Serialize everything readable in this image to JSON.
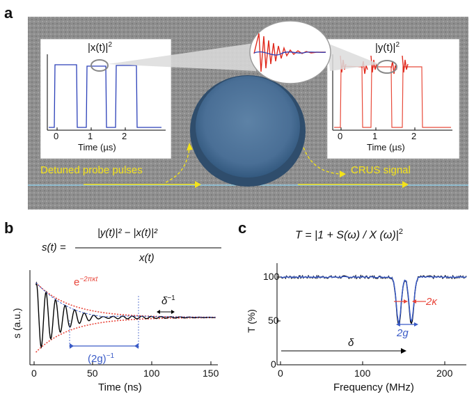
{
  "panel_letters": {
    "a": "a",
    "b": "b",
    "c": "c"
  },
  "panel_a": {
    "left_inset": {
      "ylabel": "|x(t)|",
      "ylabel_sup": "2",
      "xlabel": "Time (µs)",
      "ticks": [
        "0",
        "1",
        "2"
      ]
    },
    "right_inset": {
      "ylabel": "|y(t)|",
      "ylabel_sup": "2",
      "xlabel": "Time (µs)",
      "ticks": [
        "0",
        "1",
        "2"
      ]
    },
    "labels": {
      "probe": "Detuned probe pulses",
      "signal": "CRUS signal"
    },
    "colors": {
      "probe_trace": "#2a3fb8",
      "signal_trace": "#e02a1e",
      "annotation": "#f3e21a"
    }
  },
  "panel_b": {
    "formula_lhs": "s(t)  =",
    "formula_num": "|y(t)|² − |x(t)|²",
    "formula_den": "x(t)",
    "envelope_label": "e",
    "envelope_exp": "−2πκt",
    "delta_label": "δ",
    "delta_exp": "−1",
    "g_label": "(2g)",
    "g_exp": "−1",
    "ylabel": "s (a.u.)",
    "xlabel": "Time (ns)",
    "xticks": [
      "0",
      "50",
      "100",
      "150"
    ]
  },
  "panel_c": {
    "formula": "T = |1 + S(ω) / X (ω)|",
    "formula_exp": "2",
    "kappa_label": "2κ",
    "g_label": "2g",
    "delta_label": "δ",
    "ylabel": "T (%)",
    "xlabel": "Frequency (MHz)",
    "xticks": [
      "0",
      "100",
      "200"
    ],
    "yticks": [
      "0",
      "50",
      "100"
    ]
  },
  "chart_data": [
    {
      "type": "line",
      "panel": "b",
      "xlabel": "Time (ns)",
      "ylabel": "s (a.u.)",
      "xlim": [
        -5,
        152
      ],
      "series": [
        {
          "name": "s(t)",
          "color": "#000000",
          "decay_rate_per_ns": 0.035,
          "beat_period_ns": 8,
          "envelope_period_ns": 115
        },
        {
          "name": "e^{-2πκt}",
          "color": "#e8453a"
        }
      ]
    },
    {
      "type": "line",
      "panel": "c",
      "xlabel": "Frequency (MHz)",
      "ylabel": "T (%)",
      "xlim": [
        0,
        220
      ],
      "ylim": [
        0,
        105
      ],
      "dips": [
        {
          "x": 140,
          "y": 45
        },
        {
          "x": 155,
          "y": 47
        }
      ],
      "baseline": 100
    }
  ]
}
